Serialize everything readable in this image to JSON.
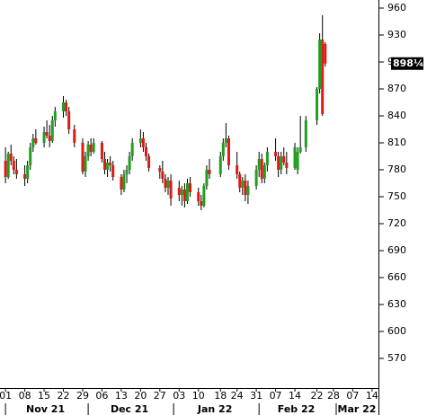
{
  "chart_data": {
    "type": "candlestick",
    "up_color": "#1f9e1f",
    "down_color": "#e01818",
    "wick_color": "#000000",
    "xlim": [
      -2,
      135
    ],
    "ylim": [
      537,
      969
    ],
    "xticks": [
      {
        "value": 0,
        "label": "01"
      },
      {
        "value": 7,
        "label": "08"
      },
      {
        "value": 14,
        "label": "15"
      },
      {
        "value": 21,
        "label": "22"
      },
      {
        "value": 28,
        "label": "29"
      },
      {
        "value": 35,
        "label": "06"
      },
      {
        "value": 42,
        "label": "13"
      },
      {
        "value": 49,
        "label": "20"
      },
      {
        "value": 56,
        "label": "27"
      },
      {
        "value": 63,
        "label": "03"
      },
      {
        "value": 70,
        "label": "10"
      },
      {
        "value": 78,
        "label": "18"
      },
      {
        "value": 84,
        "label": "24"
      },
      {
        "value": 91,
        "label": "31"
      },
      {
        "value": 98,
        "label": "07"
      },
      {
        "value": 105,
        "label": "14"
      },
      {
        "value": 113,
        "label": "22"
      },
      {
        "value": 119,
        "label": "28"
      },
      {
        "value": 126,
        "label": "07"
      },
      {
        "value": 133,
        "label": "14"
      }
    ],
    "months": [
      {
        "label": "Nov 21",
        "start": 0,
        "end": 29
      },
      {
        "label": "Dec 21",
        "start": 30,
        "end": 60
      },
      {
        "label": "Jan 22",
        "start": 61,
        "end": 91
      },
      {
        "label": "Feb 22",
        "start": 92,
        "end": 119
      },
      {
        "label": "Mar 22",
        "start": 120,
        "end": 150
      }
    ],
    "yticks": [
      960,
      930,
      900,
      870,
      840,
      810,
      780,
      750,
      720,
      690,
      660,
      630,
      600,
      570
    ],
    "last_price": {
      "value": 898.25,
      "label": "898¼"
    },
    "x": [
      0,
      1,
      2,
      3,
      4,
      7,
      8,
      9,
      10,
      11,
      14,
      15,
      16,
      17,
      18,
      21,
      22,
      23,
      25,
      28,
      29,
      30,
      31,
      32,
      35,
      36,
      37,
      38,
      39,
      42,
      43,
      44,
      45,
      46,
      49,
      50,
      51,
      52,
      56,
      57,
      58,
      59,
      60,
      63,
      64,
      65,
      66,
      67,
      70,
      71,
      72,
      73,
      74,
      78,
      79,
      80,
      81,
      84,
      85,
      86,
      87,
      88,
      91,
      92,
      93,
      94,
      95,
      98,
      99,
      100,
      101,
      102,
      105,
      106,
      107,
      109,
      113,
      114,
      115,
      116
    ],
    "open": [
      790,
      772,
      798,
      790,
      780,
      775,
      770,
      785,
      805,
      815,
      810,
      822,
      818,
      812,
      835,
      845,
      855,
      845,
      825,
      810,
      778,
      795,
      808,
      800,
      810,
      792,
      780,
      788,
      785,
      772,
      758,
      775,
      780,
      795,
      810,
      815,
      805,
      795,
      782,
      778,
      770,
      760,
      768,
      760,
      752,
      758,
      745,
      765,
      755,
      745,
      740,
      762,
      780,
      775,
      795,
      810,
      815,
      785,
      775,
      760,
      768,
      752,
      762,
      780,
      792,
      770,
      785,
      800,
      795,
      780,
      795,
      788,
      782,
      780,
      800,
      805,
      835,
      870,
      925,
      920
    ],
    "high": [
      805,
      800,
      808,
      795,
      792,
      785,
      790,
      810,
      820,
      825,
      828,
      835,
      830,
      840,
      850,
      862,
      858,
      850,
      830,
      815,
      800,
      812,
      815,
      815,
      812,
      800,
      792,
      795,
      790,
      775,
      780,
      785,
      800,
      815,
      825,
      822,
      810,
      798,
      785,
      790,
      775,
      772,
      775,
      768,
      762,
      765,
      770,
      772,
      760,
      752,
      765,
      785,
      792,
      800,
      815,
      832,
      818,
      800,
      778,
      772,
      775,
      768,
      785,
      800,
      798,
      788,
      805,
      815,
      800,
      800,
      805,
      800,
      810,
      805,
      840,
      840,
      872,
      932,
      952,
      922
    ],
    "low": [
      765,
      770,
      785,
      775,
      770,
      762,
      765,
      780,
      800,
      808,
      805,
      815,
      805,
      810,
      828,
      838,
      840,
      820,
      805,
      775,
      772,
      790,
      795,
      798,
      788,
      775,
      772,
      778,
      768,
      752,
      755,
      765,
      775,
      790,
      805,
      800,
      790,
      778,
      770,
      765,
      755,
      752,
      740,
      745,
      740,
      738,
      742,
      750,
      740,
      735,
      738,
      758,
      770,
      772,
      790,
      805,
      780,
      770,
      755,
      752,
      745,
      742,
      758,
      772,
      765,
      765,
      778,
      790,
      772,
      775,
      785,
      775,
      780,
      775,
      798,
      800,
      830,
      865,
      840,
      895
    ],
    "close": [
      772,
      798,
      790,
      780,
      775,
      770,
      785,
      805,
      815,
      810,
      822,
      818,
      812,
      835,
      845,
      855,
      845,
      825,
      810,
      778,
      795,
      808,
      800,
      810,
      792,
      780,
      788,
      785,
      772,
      758,
      775,
      780,
      795,
      810,
      815,
      805,
      795,
      782,
      778,
      770,
      760,
      768,
      748,
      752,
      758,
      745,
      765,
      755,
      745,
      740,
      762,
      780,
      775,
      795,
      810,
      815,
      785,
      775,
      760,
      768,
      752,
      762,
      780,
      792,
      770,
      785,
      800,
      795,
      780,
      795,
      788,
      782,
      805,
      800,
      805,
      835,
      870,
      925,
      842,
      898.25
    ]
  }
}
